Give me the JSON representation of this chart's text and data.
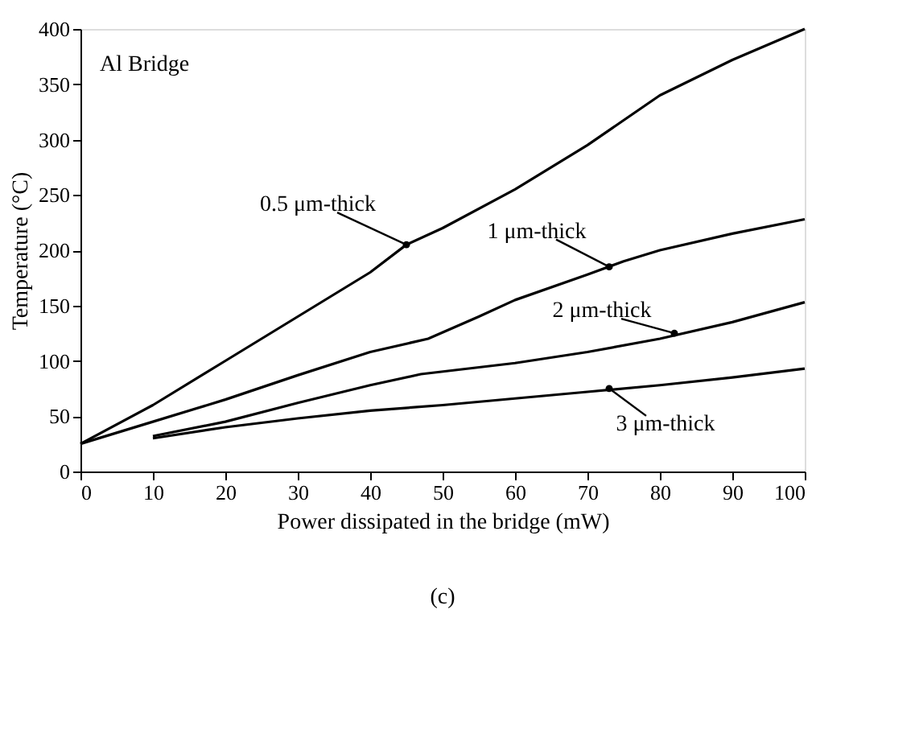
{
  "chart_data": {
    "type": "line",
    "xlabel": "Power dissipated in the bridge (mW)",
    "ylabel": "Temperature (°C)",
    "xlim": [
      0,
      100
    ],
    "ylim": [
      0,
      400
    ],
    "xticks": [
      0,
      10,
      20,
      30,
      40,
      50,
      60,
      70,
      80,
      90,
      100
    ],
    "yticks": [
      0,
      50,
      100,
      150,
      200,
      250,
      300,
      350,
      400
    ],
    "grid": false,
    "marker": "none",
    "line_style": "solid",
    "series": [
      {
        "color": "#000000",
        "x": [
          0,
          10,
          20,
          30,
          40,
          45,
          50,
          60,
          70,
          80,
          90,
          100
        ],
        "values": [
          25,
          60,
          100,
          140,
          180,
          205,
          220,
          255,
          295,
          340,
          372,
          400
        ]
      },
      {
        "color": "#000000",
        "x": [
          0,
          10,
          20,
          30,
          40,
          48,
          55,
          60,
          70,
          75,
          80,
          90,
          100
        ],
        "values": [
          25,
          45,
          65,
          87,
          108,
          120,
          140,
          155,
          178,
          190,
          200,
          215,
          228
        ]
      },
      {
        "color": "#000000",
        "x": [
          10,
          20,
          30,
          40,
          47,
          60,
          70,
          80,
          90,
          100
        ],
        "values": [
          32,
          45,
          62,
          78,
          88,
          98,
          108,
          120,
          135,
          153
        ]
      },
      {
        "color": "#000000",
        "x": [
          10,
          20,
          30,
          40,
          50,
          60,
          70,
          80,
          90,
          100
        ],
        "values": [
          30,
          40,
          48,
          55,
          60,
          66,
          72,
          78,
          85,
          93
        ]
      }
    ],
    "annotations": [
      "Al Bridge",
      "(c)",
      {
        "text": "0.5 μm-thick",
        "x": 45,
        "y": 205
      },
      {
        "text": "1 μm-thick",
        "x": 73,
        "y": 185
      },
      {
        "text": "2 μm-thick",
        "x": 82,
        "y": 125
      },
      {
        "text": "3 μm-thick",
        "x": 73,
        "y": 75
      }
    ]
  }
}
